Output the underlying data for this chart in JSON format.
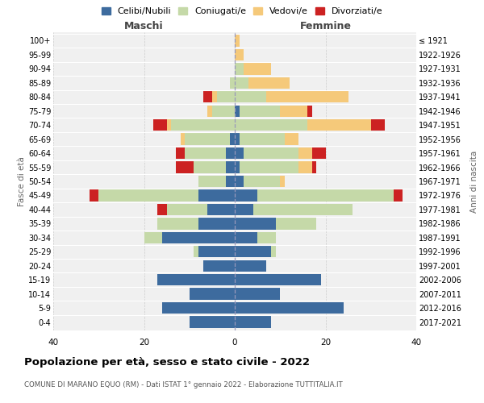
{
  "age_groups": [
    "0-4",
    "5-9",
    "10-14",
    "15-19",
    "20-24",
    "25-29",
    "30-34",
    "35-39",
    "40-44",
    "45-49",
    "50-54",
    "55-59",
    "60-64",
    "65-69",
    "70-74",
    "75-79",
    "80-84",
    "85-89",
    "90-94",
    "95-99",
    "100+"
  ],
  "birth_years": [
    "2017-2021",
    "2012-2016",
    "2007-2011",
    "2002-2006",
    "1997-2001",
    "1992-1996",
    "1987-1991",
    "1982-1986",
    "1977-1981",
    "1972-1976",
    "1967-1971",
    "1962-1966",
    "1957-1961",
    "1952-1956",
    "1947-1951",
    "1942-1946",
    "1937-1941",
    "1932-1936",
    "1927-1931",
    "1922-1926",
    "≤ 1921"
  ],
  "maschi": {
    "celibi": [
      10,
      16,
      10,
      17,
      7,
      8,
      16,
      8,
      6,
      8,
      2,
      2,
      2,
      1,
      0,
      0,
      0,
      0,
      0,
      0,
      0
    ],
    "coniugati": [
      0,
      0,
      0,
      0,
      0,
      1,
      4,
      9,
      9,
      22,
      6,
      7,
      9,
      10,
      14,
      5,
      4,
      1,
      0,
      0,
      0
    ],
    "vedovi": [
      0,
      0,
      0,
      0,
      0,
      0,
      0,
      0,
      0,
      0,
      0,
      0,
      0,
      1,
      1,
      1,
      1,
      0,
      0,
      0,
      0
    ],
    "divorziati": [
      0,
      0,
      0,
      0,
      0,
      0,
      0,
      0,
      2,
      2,
      0,
      4,
      2,
      0,
      3,
      0,
      2,
      0,
      0,
      0,
      0
    ]
  },
  "femmine": {
    "nubili": [
      8,
      24,
      10,
      19,
      7,
      8,
      5,
      9,
      4,
      5,
      2,
      1,
      2,
      1,
      0,
      1,
      0,
      0,
      0,
      0,
      0
    ],
    "coniugate": [
      0,
      0,
      0,
      0,
      0,
      1,
      4,
      9,
      22,
      30,
      8,
      13,
      12,
      10,
      16,
      9,
      7,
      3,
      2,
      0,
      0
    ],
    "vedove": [
      0,
      0,
      0,
      0,
      0,
      0,
      0,
      0,
      0,
      0,
      1,
      3,
      3,
      3,
      14,
      6,
      18,
      9,
      6,
      2,
      1
    ],
    "divorziate": [
      0,
      0,
      0,
      0,
      0,
      0,
      0,
      0,
      0,
      2,
      0,
      1,
      3,
      0,
      3,
      1,
      0,
      0,
      0,
      0,
      0
    ]
  },
  "colors": {
    "celibi": "#3d6b9e",
    "coniugati": "#c5d9a8",
    "vedovi": "#f5c97a",
    "divorziati": "#cc2222"
  },
  "title": "Popolazione per età, sesso e stato civile - 2022",
  "subtitle": "COMUNE DI MARANO EQUO (RM) - Dati ISTAT 1° gennaio 2022 - Elaborazione TUTTITALIA.IT",
  "xlabel_left": "Maschi",
  "xlabel_right": "Femmine",
  "ylabel_left": "Fasce di età",
  "ylabel_right": "Anni di nascita",
  "xlim": 40,
  "legend_labels": [
    "Celibi/Nubili",
    "Coniugati/e",
    "Vedovi/e",
    "Divorziati/e"
  ],
  "background_color": "#f0f0f0",
  "bar_height": 0.82
}
